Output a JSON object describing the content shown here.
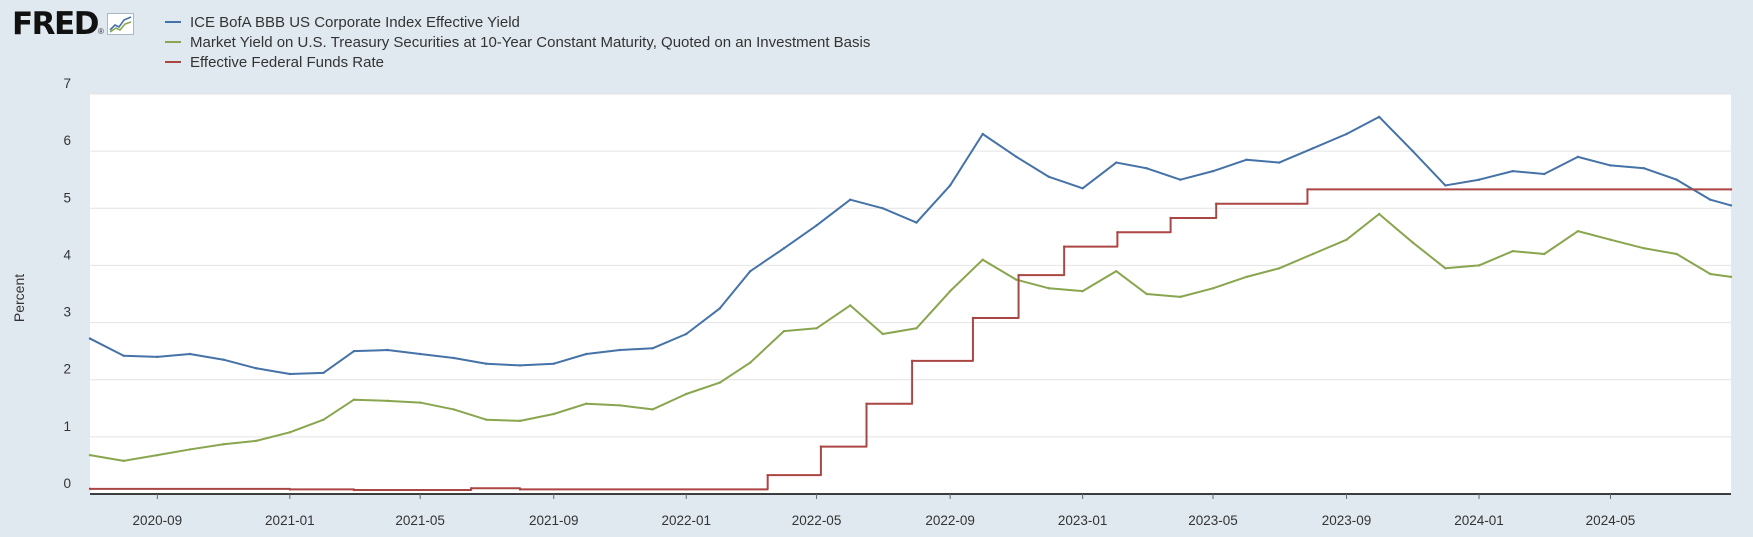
{
  "header": {
    "logo_text": "FRED",
    "logo_mark": "®",
    "logo_icon": "chart-line-icon"
  },
  "chart_data": {
    "type": "line",
    "title": "",
    "xlabel": "",
    "ylabel": "Percent",
    "ylim": [
      0,
      7
    ],
    "yticks": [
      "0",
      "1",
      "2",
      "3",
      "4",
      "5",
      "6",
      "7"
    ],
    "xlim": [
      "2020-07-01",
      "2024-08-20"
    ],
    "xticks": [
      "2020-09",
      "2021-01",
      "2021-05",
      "2021-09",
      "2022-01",
      "2022-05",
      "2022-09",
      "2023-01",
      "2023-05",
      "2023-09",
      "2024-01",
      "2024-05"
    ],
    "grid": true,
    "legend_position": "top-left",
    "series": [
      {
        "name": "ICE BofA BBB US Corporate Index Effective Yield",
        "color": "#4572a7",
        "points": [
          [
            "2020-07-01",
            2.72
          ],
          [
            "2020-08-01",
            2.42
          ],
          [
            "2020-09-01",
            2.4
          ],
          [
            "2020-10-01",
            2.45
          ],
          [
            "2020-11-01",
            2.35
          ],
          [
            "2020-12-01",
            2.2
          ],
          [
            "2021-01-01",
            2.1
          ],
          [
            "2021-02-01",
            2.12
          ],
          [
            "2021-03-01",
            2.5
          ],
          [
            "2021-04-01",
            2.52
          ],
          [
            "2021-05-01",
            2.45
          ],
          [
            "2021-06-01",
            2.38
          ],
          [
            "2021-07-01",
            2.28
          ],
          [
            "2021-08-01",
            2.25
          ],
          [
            "2021-09-01",
            2.28
          ],
          [
            "2021-10-01",
            2.45
          ],
          [
            "2021-11-01",
            2.52
          ],
          [
            "2021-12-01",
            2.55
          ],
          [
            "2022-01-01",
            2.8
          ],
          [
            "2022-02-01",
            3.25
          ],
          [
            "2022-03-01",
            3.9
          ],
          [
            "2022-04-01",
            4.3
          ],
          [
            "2022-05-01",
            4.7
          ],
          [
            "2022-06-01",
            5.15
          ],
          [
            "2022-07-01",
            5.0
          ],
          [
            "2022-08-01",
            4.75
          ],
          [
            "2022-09-01",
            5.4
          ],
          [
            "2022-10-01",
            6.3
          ],
          [
            "2022-11-01",
            5.9
          ],
          [
            "2022-12-01",
            5.55
          ],
          [
            "2023-01-01",
            5.35
          ],
          [
            "2023-02-01",
            5.8
          ],
          [
            "2023-03-01",
            5.7
          ],
          [
            "2023-04-01",
            5.5
          ],
          [
            "2023-05-01",
            5.65
          ],
          [
            "2023-06-01",
            5.85
          ],
          [
            "2023-07-01",
            5.8
          ],
          [
            "2023-08-01",
            6.05
          ],
          [
            "2023-09-01",
            6.3
          ],
          [
            "2023-10-01",
            6.6
          ],
          [
            "2023-11-01",
            6.0
          ],
          [
            "2023-12-01",
            5.4
          ],
          [
            "2024-01-01",
            5.5
          ],
          [
            "2024-02-01",
            5.65
          ],
          [
            "2024-03-01",
            5.6
          ],
          [
            "2024-04-01",
            5.9
          ],
          [
            "2024-05-01",
            5.75
          ],
          [
            "2024-06-01",
            5.7
          ],
          [
            "2024-07-01",
            5.5
          ],
          [
            "2024-08-01",
            5.15
          ],
          [
            "2024-08-20",
            5.05
          ]
        ]
      },
      {
        "name": "Market Yield on U.S. Treasury Securities at 10-Year Constant Maturity, Quoted on an Investment Basis",
        "color": "#89a54e",
        "points": [
          [
            "2020-07-01",
            0.68
          ],
          [
            "2020-08-01",
            0.58
          ],
          [
            "2020-09-01",
            0.68
          ],
          [
            "2020-10-01",
            0.78
          ],
          [
            "2020-11-01",
            0.87
          ],
          [
            "2020-12-01",
            0.93
          ],
          [
            "2021-01-01",
            1.08
          ],
          [
            "2021-02-01",
            1.3
          ],
          [
            "2021-03-01",
            1.65
          ],
          [
            "2021-04-01",
            1.63
          ],
          [
            "2021-05-01",
            1.6
          ],
          [
            "2021-06-01",
            1.48
          ],
          [
            "2021-07-01",
            1.3
          ],
          [
            "2021-08-01",
            1.28
          ],
          [
            "2021-09-01",
            1.4
          ],
          [
            "2021-10-01",
            1.58
          ],
          [
            "2021-11-01",
            1.55
          ],
          [
            "2021-12-01",
            1.48
          ],
          [
            "2022-01-01",
            1.75
          ],
          [
            "2022-02-01",
            1.95
          ],
          [
            "2022-03-01",
            2.3
          ],
          [
            "2022-04-01",
            2.85
          ],
          [
            "2022-05-01",
            2.9
          ],
          [
            "2022-06-01",
            3.3
          ],
          [
            "2022-07-01",
            2.8
          ],
          [
            "2022-08-01",
            2.9
          ],
          [
            "2022-09-01",
            3.55
          ],
          [
            "2022-10-01",
            4.1
          ],
          [
            "2022-11-01",
            3.75
          ],
          [
            "2022-12-01",
            3.6
          ],
          [
            "2023-01-01",
            3.55
          ],
          [
            "2023-02-01",
            3.9
          ],
          [
            "2023-03-01",
            3.5
          ],
          [
            "2023-04-01",
            3.45
          ],
          [
            "2023-05-01",
            3.6
          ],
          [
            "2023-06-01",
            3.8
          ],
          [
            "2023-07-01",
            3.95
          ],
          [
            "2023-08-01",
            4.2
          ],
          [
            "2023-09-01",
            4.45
          ],
          [
            "2023-10-01",
            4.9
          ],
          [
            "2023-11-01",
            4.4
          ],
          [
            "2023-12-01",
            3.95
          ],
          [
            "2024-01-01",
            4.0
          ],
          [
            "2024-02-01",
            4.25
          ],
          [
            "2024-03-01",
            4.2
          ],
          [
            "2024-04-01",
            4.6
          ],
          [
            "2024-05-01",
            4.45
          ],
          [
            "2024-06-01",
            4.3
          ],
          [
            "2024-07-01",
            4.2
          ],
          [
            "2024-08-01",
            3.85
          ],
          [
            "2024-08-20",
            3.8
          ]
        ]
      },
      {
        "name": "Effective Federal Funds Rate",
        "color": "#aa4643",
        "step": true,
        "points": [
          [
            "2020-07-01",
            0.09
          ],
          [
            "2021-01-01",
            0.08
          ],
          [
            "2021-03-01",
            0.07
          ],
          [
            "2021-06-17",
            0.1
          ],
          [
            "2021-08-01",
            0.08
          ],
          [
            "2022-03-17",
            0.33
          ],
          [
            "2022-05-05",
            0.83
          ],
          [
            "2022-06-16",
            1.58
          ],
          [
            "2022-07-28",
            2.33
          ],
          [
            "2022-09-22",
            3.08
          ],
          [
            "2022-11-03",
            3.83
          ],
          [
            "2022-12-15",
            4.33
          ],
          [
            "2023-02-02",
            4.58
          ],
          [
            "2023-03-23",
            4.83
          ],
          [
            "2023-05-04",
            5.08
          ],
          [
            "2023-07-27",
            5.33
          ],
          [
            "2024-08-20",
            5.33
          ]
        ]
      }
    ]
  }
}
